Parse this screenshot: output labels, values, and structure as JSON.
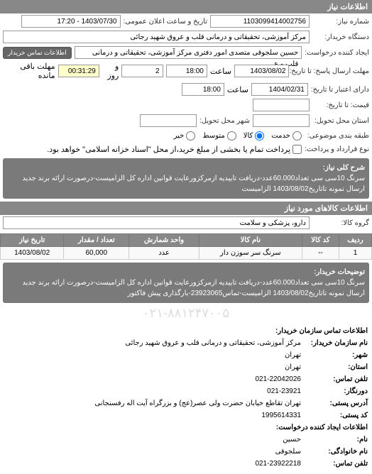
{
  "section1_title": "اطلاعات نیاز",
  "req_no_label": "شماره نیاز:",
  "req_no": "1103099414002756",
  "announce_label": "تاریخ و ساعت اعلان عمومی:",
  "announce_value": "1403/07/30 - 17:20",
  "buyer_org_label": "دستگاه خریدار:",
  "buyer_org": "مرکز آموزشی، تحقیقاتی و درمانی قلب و عروق شهید رجائی",
  "creator_label": "ایجاد کننده درخواست:",
  "creator": "حسین سلجوقی متصدی امور دفتری مرکز آموزشی، تحقیقاتی و درمانی قلب و ع",
  "contact_btn": "اطلاعات تماس خریدار",
  "send_deadline_label": "مهلت ارسال پاسخ: تا تاریخ:",
  "send_deadline_date": "1403/08/02",
  "hour_label": "ساعت",
  "send_deadline_time": "18:00",
  "days_label": "و روز",
  "days_value": "2",
  "remain_time": "00:31:29",
  "remain_suffix": "مهلت باقی مانده",
  "valid_deadline_label": "دارای اعتبار تا تاریخ:",
  "valid_deadline_date": "1404/02/31",
  "valid_deadline_time": "18:00",
  "price_label": "قیمت: تا تاریخ:",
  "ship_addr_label": "استان محل تحویل:",
  "ship_city_label": "شهر محل تحویل:",
  "pack_label": "طبقه بندی موضوعی:",
  "radio_low": "خیر",
  "radio_med": "متوسط",
  "radio_high": "کالا",
  "radio_highest": "خدمت",
  "check_label1": "پرداخت تمام یا بخشی از مبلغ خرید،از محل \"اسناد خزانه اسلامی\" خواهد بود.",
  "check_label2": "نوع قرارداد و پرداخت:",
  "keywords_label": "شرح کلی نیاز:",
  "keywords": "سرنگ 10سی سی تعداد60.000عدد-دریافت تاییدیه ازمرکزورعایت قوانین اداره کل الزامیست-درصورت ارائه برند جدید ارسال نمونه تاتاریخ1403/08/02 الزامیست",
  "section2_title": "اطلاعات کالاهای مورد نیاز",
  "group_label": "گروه کالا:",
  "group_value": "دارو، پزشکی و سلامت",
  "table": {
    "headers": [
      "ردیف",
      "کد کالا",
      "نام کالا",
      "واحد شمارش",
      "تعداد / مقدار",
      "تاریخ نیاز"
    ],
    "row1": [
      "1",
      "--",
      "سرنگ سر سوزن دار",
      "عدد",
      "60,000",
      "1403/08/02"
    ]
  },
  "notes_label": "توضیحات خریدار:",
  "notes": "سرنگ 10سی سی تعداد60.000عدد-دریافت تاییدیه ازمرکزورعایت قوانین اداره کل الزامیست-درصورت ارائه برند جدید ارسال نمونه تاتاریخ1403/08/02 الزامیست-تماس23923065-بارگذاری پیش فاکتور",
  "watermark": "۰۲۱-۸۸۱۲۴۷۰۰۵",
  "contact_header": "اطلاعات تماس سازمان خریدار:",
  "org_name_label": "نام سازمان خریدار:",
  "org_name": "مرکز آموزشی، تحقیقاتی و درمانی قلب و عروق شهید رجائی",
  "city_label": "شهر:",
  "city": "تهران",
  "province_label": "استان:",
  "province": "تهران",
  "phone_label": "تلفن تماس:",
  "phone": "021-22042026",
  "fax_label": "دورنگار:",
  "fax": "021-23921",
  "postal_label": "آدرس پستی:",
  "postal": "تهران تقاطع خیابان حضرت ولی عصر(عج) و بزرگراه آیت اله رفسنجانی",
  "postcode_label": "کد پستی:",
  "postcode": "1995614331",
  "req_creator_header": "اطلاعات ایجاد کننده درخواست:",
  "fname_label": "نام:",
  "fname": "حسین",
  "lname_label": "نام خانوادگی:",
  "lname": "سلجوقی",
  "cphone_label": "تلفن تماس:",
  "cphone": "021-23922218"
}
